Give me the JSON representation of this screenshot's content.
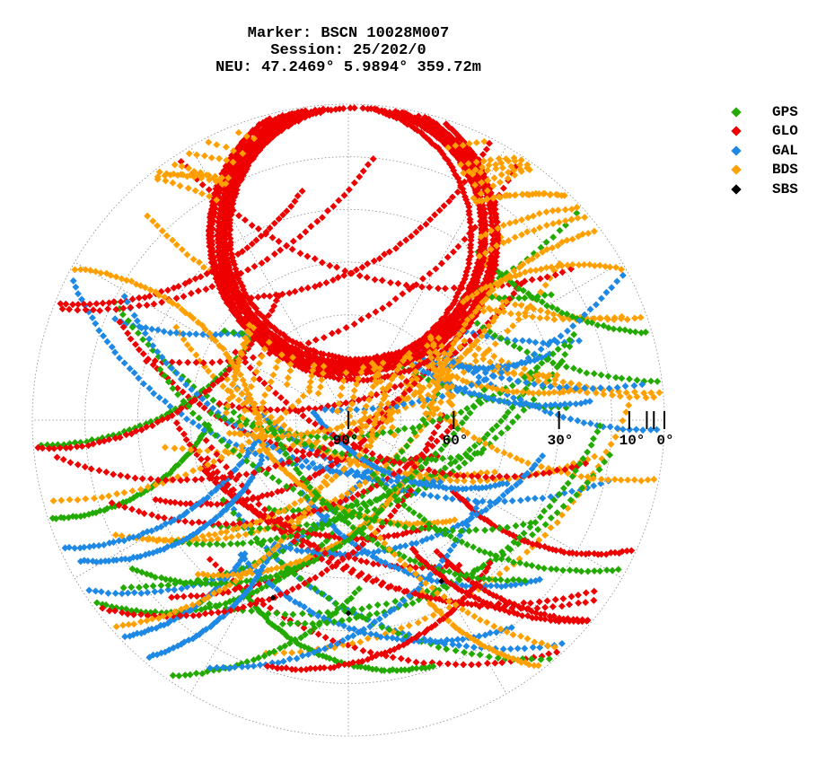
{
  "title_lines": [
    "Marker: BSCN 10028M007",
    "Session: 25/202/0",
    "NEU: 47.2469° 5.9894° 359.72m"
  ],
  "chart_data": {
    "type": "scatter",
    "projection": "polar-skyplot",
    "elevation_ticks": [
      {
        "value": 90,
        "label": "90°"
      },
      {
        "value": 60,
        "label": "60°"
      },
      {
        "value": 30,
        "label": "30°"
      },
      {
        "value": 10,
        "label": "10°"
      },
      {
        "value": 0,
        "label": "0°"
      }
    ],
    "minor_ticks": [
      5,
      3
    ],
    "grid": true,
    "legend_placement": "top-right",
    "series": [
      {
        "name": "GPS",
        "color": "#22aa00"
      },
      {
        "name": "GLO",
        "color": "#ee0000"
      },
      {
        "name": "GAL",
        "color": "#1e88e5"
      },
      {
        "name": "BDS",
        "color": "#ffa000"
      },
      {
        "name": "SBS",
        "color": "#000000",
        "points": [
          [
            203,
            35
          ],
          [
            180,
            35
          ],
          [
            150,
            37
          ]
        ]
      }
    ]
  }
}
